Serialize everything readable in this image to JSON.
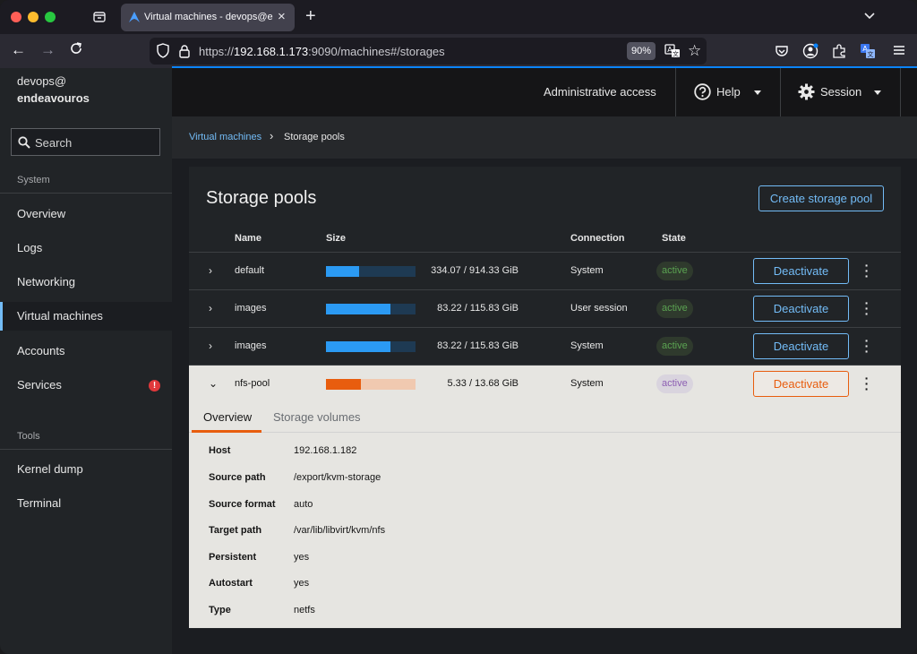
{
  "browser": {
    "tab_title": "Virtual machines - devops@endeavouros",
    "url_prefix": "https://",
    "url_host": "192.168.1.173",
    "url_rest": ":9090/machines#/storages",
    "zoom": "90%"
  },
  "sidebar": {
    "user_line1": "devops@",
    "user_line2": "endeavouros",
    "search_label": "Search",
    "section_system": "System",
    "section_tools": "Tools",
    "items": [
      {
        "label": "Overview"
      },
      {
        "label": "Logs"
      },
      {
        "label": "Networking"
      },
      {
        "label": "Virtual machines",
        "active": true
      },
      {
        "label": "Accounts"
      },
      {
        "label": "Services",
        "alert": true
      }
    ],
    "tools_items": [
      {
        "label": "Kernel dump"
      },
      {
        "label": "Terminal"
      }
    ],
    "alert_glyph": "!"
  },
  "masthead": {
    "admin_access": "Administrative access",
    "help": "Help",
    "session": "Session"
  },
  "breadcrumb": {
    "parent": "Virtual machines",
    "current": "Storage pools"
  },
  "pools_card": {
    "title": "Storage pools",
    "create_button": "Create storage pool",
    "headers": {
      "name": "Name",
      "size": "Size",
      "connection": "Connection",
      "state": "State"
    },
    "rows": [
      {
        "name": "default",
        "size": "334.07 / 914.33 GiB",
        "usage_pct": 36.5,
        "connection": "System",
        "state": "active",
        "action": "Deactivate",
        "expanded": false
      },
      {
        "name": "images",
        "size": "83.22 / 115.83 GiB",
        "usage_pct": 71.8,
        "connection": "User session",
        "state": "active",
        "action": "Deactivate",
        "expanded": false
      },
      {
        "name": "images",
        "size": "83.22 / 115.83 GiB",
        "usage_pct": 71.8,
        "connection": "System",
        "state": "active",
        "action": "Deactivate",
        "expanded": false
      },
      {
        "name": "nfs-pool",
        "size": "5.33 / 13.68 GiB",
        "usage_pct": 39.0,
        "connection": "System",
        "state": "active",
        "action": "Deactivate",
        "expanded": true
      }
    ]
  },
  "details": {
    "tabs": [
      "Overview",
      "Storage volumes"
    ],
    "fields": [
      {
        "term": "Host",
        "value": "192.168.1.182"
      },
      {
        "term": "Source path",
        "value": "/export/kvm-storage"
      },
      {
        "term": "Source format",
        "value": "auto"
      },
      {
        "term": "Target path",
        "value": "/var/lib/libvirt/kvm/nfs"
      },
      {
        "term": "Persistent",
        "value": "yes"
      },
      {
        "term": "Autostart",
        "value": "yes"
      },
      {
        "term": "Type",
        "value": "netfs"
      }
    ]
  },
  "colors": {
    "accent_link": "#73bcf7",
    "usage_bar": "#2b9af3",
    "usage_bar_inactive": "#e85d0e",
    "state_active": "#5ba352"
  }
}
